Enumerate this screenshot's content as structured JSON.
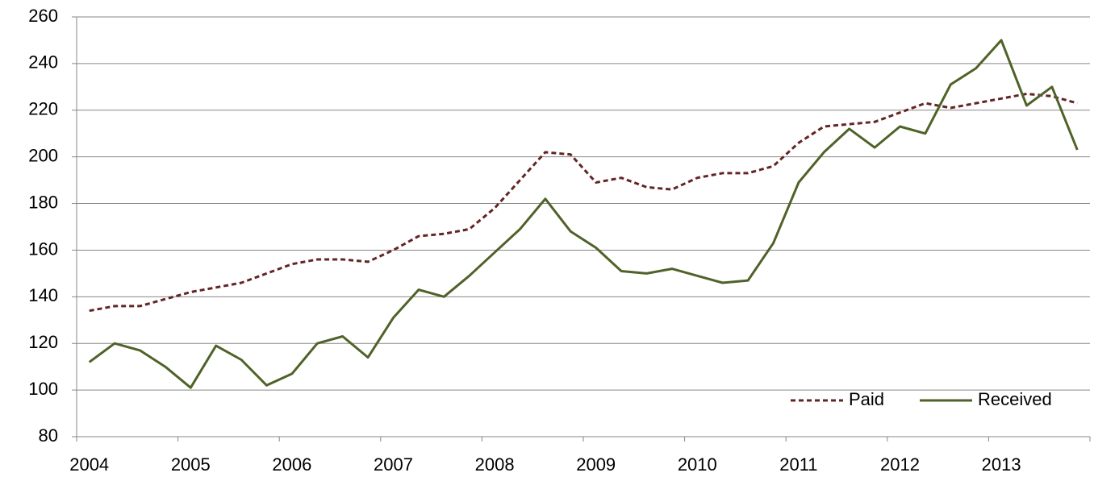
{
  "chart_data": {
    "type": "line",
    "categories": [
      "2004",
      null,
      null,
      null,
      "2005",
      null,
      null,
      null,
      "2006",
      null,
      null,
      null,
      "2007",
      null,
      null,
      null,
      "2008",
      null,
      null,
      null,
      "2009",
      null,
      null,
      null,
      "2010",
      null,
      null,
      null,
      "2011",
      null,
      null,
      null,
      "2012",
      null,
      null,
      null,
      "2013",
      null,
      null,
      null
    ],
    "series": [
      {
        "name": "Paid",
        "color": "#632523",
        "dash": true,
        "values": [
          134,
          136,
          136,
          139,
          142,
          144,
          146,
          150,
          154,
          156,
          156,
          155,
          160,
          166,
          167,
          169,
          178,
          190,
          202,
          201,
          189,
          191,
          187,
          186,
          191,
          193,
          193,
          196,
          206,
          213,
          214,
          215,
          219,
          223,
          221,
          223,
          225,
          227,
          226,
          223
        ]
      },
      {
        "name": "Received",
        "color": "#4f6228",
        "dash": false,
        "values": [
          112,
          120,
          117,
          110,
          101,
          119,
          113,
          102,
          107,
          120,
          123,
          114,
          131,
          143,
          140,
          149,
          159,
          169,
          182,
          168,
          161,
          151,
          150,
          152,
          149,
          146,
          147,
          163,
          189,
          202,
          212,
          204,
          213,
          210,
          231,
          238,
          250,
          222,
          230,
          203
        ]
      }
    ],
    "ylim": [
      80,
      260
    ],
    "yticks": [
      80,
      100,
      120,
      140,
      160,
      180,
      200,
      220,
      240,
      260
    ],
    "grid": true,
    "legend": "bottom-right"
  }
}
